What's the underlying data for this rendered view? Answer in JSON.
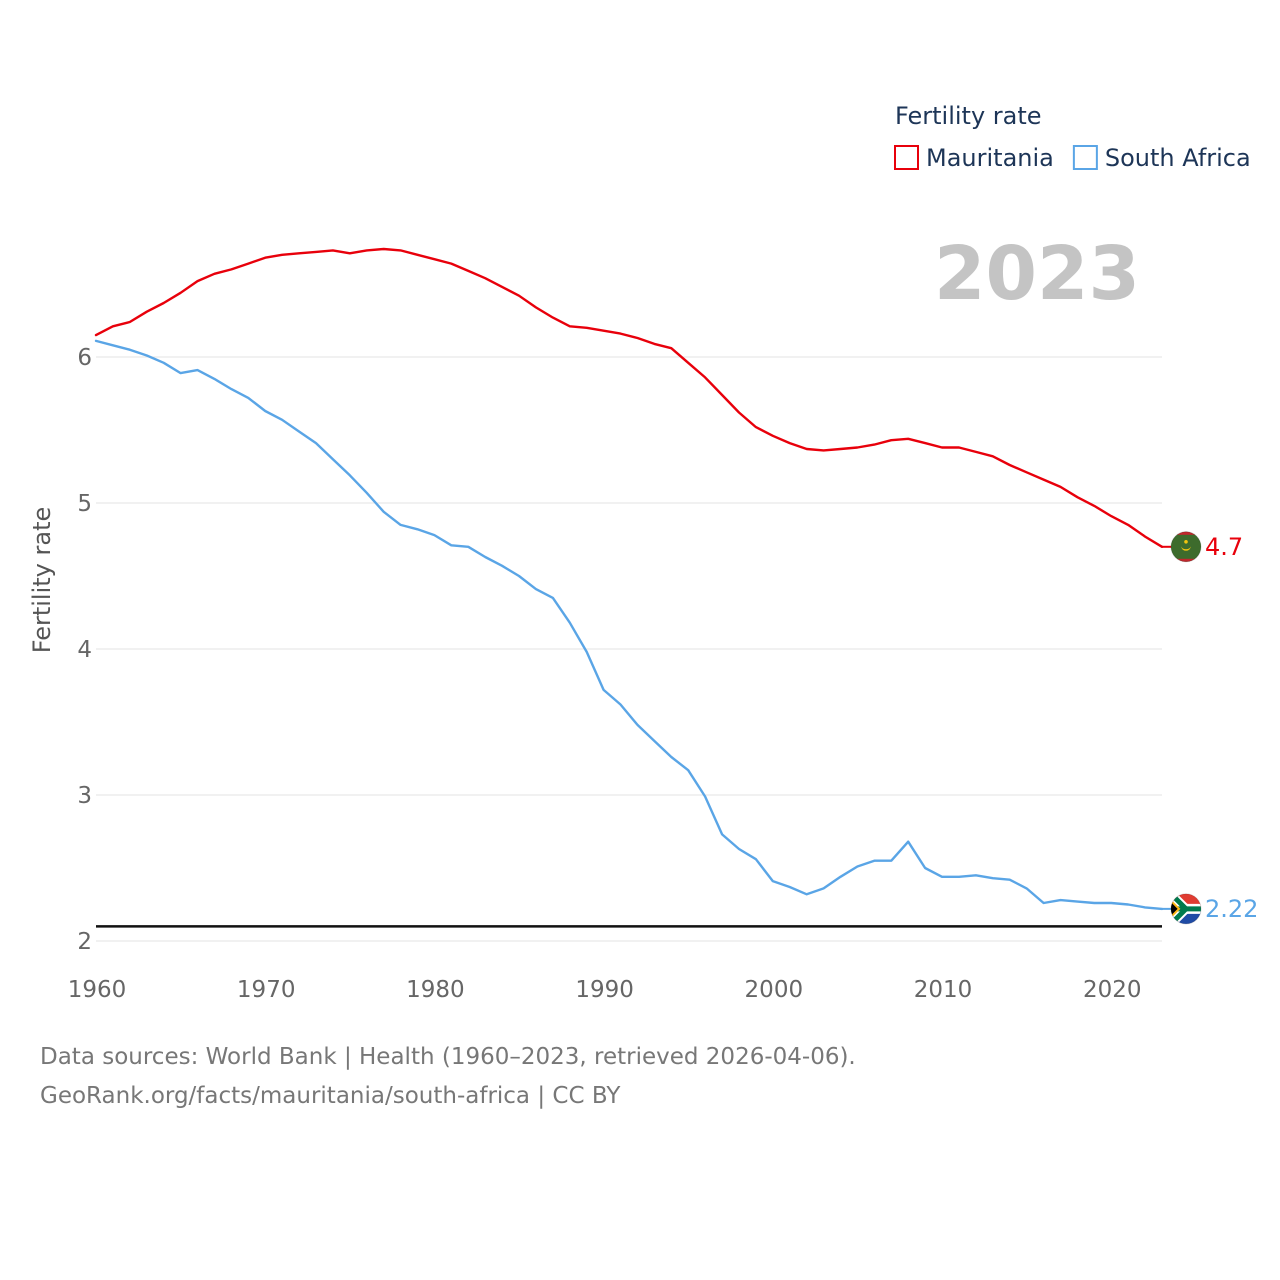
{
  "chart_data": {
    "type": "line",
    "title": "",
    "ylabel": "Fertility rate",
    "xlabel": "",
    "legend_title": "Fertility rate",
    "legend_position": "top-right",
    "year_label": "2023",
    "grid": true,
    "xlim": [
      1960,
      2023
    ],
    "ylim": [
      2,
      6.5
    ],
    "x_ticks": [
      1960,
      1970,
      1980,
      1990,
      2000,
      2010,
      2020
    ],
    "y_ticks": [
      2,
      3,
      4,
      5,
      6
    ],
    "reference_line": 2.1,
    "x": [
      1960,
      1961,
      1962,
      1963,
      1964,
      1965,
      1966,
      1967,
      1968,
      1969,
      1970,
      1971,
      1972,
      1973,
      1974,
      1975,
      1976,
      1977,
      1978,
      1979,
      1980,
      1981,
      1982,
      1983,
      1984,
      1985,
      1986,
      1987,
      1988,
      1989,
      1990,
      1991,
      1992,
      1993,
      1994,
      1995,
      1996,
      1997,
      1998,
      1999,
      2000,
      2001,
      2002,
      2003,
      2004,
      2005,
      2006,
      2007,
      2008,
      2009,
      2010,
      2011,
      2012,
      2013,
      2014,
      2015,
      2016,
      2017,
      2018,
      2019,
      2020,
      2021,
      2022,
      2023
    ],
    "series": [
      {
        "name": "Mauritania",
        "color": "#e8000b",
        "end_label": "4.7",
        "flag": "mauritania",
        "values": [
          6.15,
          6.21,
          6.24,
          6.31,
          6.37,
          6.44,
          6.52,
          6.57,
          6.6,
          6.64,
          6.68,
          6.7,
          6.71,
          6.72,
          6.73,
          6.71,
          6.73,
          6.74,
          6.73,
          6.7,
          6.67,
          6.64,
          6.59,
          6.54,
          6.48,
          6.42,
          6.34,
          6.27,
          6.21,
          6.2,
          6.18,
          6.16,
          6.13,
          6.09,
          6.06,
          5.96,
          5.86,
          5.74,
          5.62,
          5.52,
          5.46,
          5.41,
          5.37,
          5.36,
          5.37,
          5.38,
          5.4,
          5.43,
          5.44,
          5.41,
          5.38,
          5.38,
          5.35,
          5.32,
          5.26,
          5.21,
          5.16,
          5.11,
          5.04,
          4.98,
          4.91,
          4.85,
          4.77,
          4.7
        ]
      },
      {
        "name": "South Africa",
        "color": "#5aa5e6",
        "end_label": "2.22",
        "flag": "south-africa",
        "values": [
          6.11,
          6.08,
          6.05,
          6.01,
          5.96,
          5.89,
          5.91,
          5.85,
          5.78,
          5.72,
          5.63,
          5.57,
          5.49,
          5.41,
          5.3,
          5.19,
          5.07,
          4.94,
          4.85,
          4.82,
          4.78,
          4.71,
          4.7,
          4.63,
          4.57,
          4.5,
          4.41,
          4.35,
          4.18,
          3.98,
          3.72,
          3.62,
          3.48,
          3.37,
          3.26,
          3.17,
          2.99,
          2.73,
          2.63,
          2.56,
          2.41,
          2.37,
          2.32,
          2.36,
          2.44,
          2.51,
          2.55,
          2.55,
          2.68,
          2.5,
          2.44,
          2.44,
          2.45,
          2.43,
          2.42,
          2.36,
          2.26,
          2.28,
          2.27,
          2.26,
          2.26,
          2.25,
          2.23,
          2.22
        ]
      }
    ]
  },
  "footer": {
    "sources": "Data sources: World Bank | Health (1960–2023, retrieved 2026-04-06).",
    "credit": "GeoRank.org/facts/mauritania/south-africa | CC BY"
  }
}
